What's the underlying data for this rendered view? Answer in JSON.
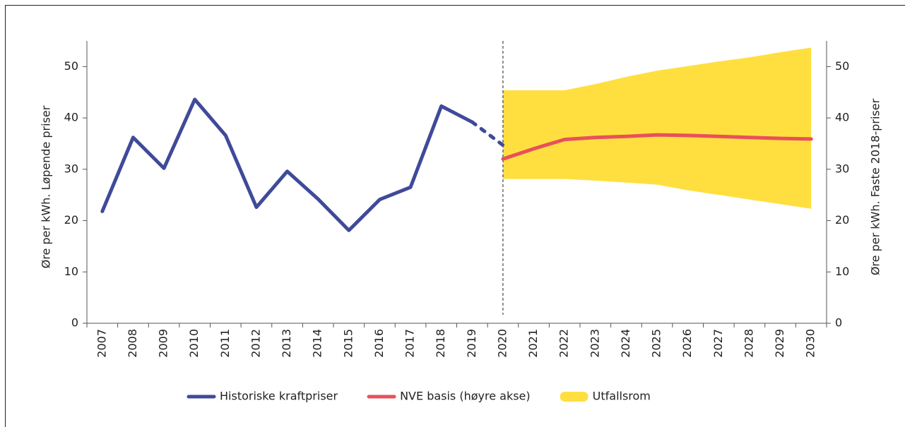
{
  "chart_data": {
    "type": "line",
    "y_label": "Øre per kWh. Løpende priser",
    "y2_label": "Øre per kWh. Faste 2018-priser",
    "categories": [
      "2007",
      "2008",
      "2009",
      "2010",
      "2011",
      "2012",
      "2013",
      "2014",
      "2015",
      "2016",
      "2017",
      "2018",
      "2019",
      "2020",
      "2021",
      "2022",
      "2023",
      "2024",
      "2025",
      "2026",
      "2027",
      "2028",
      "2029",
      "2030"
    ],
    "series": [
      {
        "name": "Historiske kraftpriser",
        "color": "#3f4a99",
        "dash_last_segment": true,
        "values": [
          21.8,
          36.2,
          30.2,
          43.6,
          36.6,
          22.6,
          29.6,
          24.2,
          18.1,
          24.1,
          26.5,
          42.3,
          39.2,
          34.7,
          null,
          null,
          null,
          null,
          null,
          null,
          null,
          null,
          null,
          null
        ]
      },
      {
        "name": "NVE basis (høyre akse)",
        "color": "#e8505b",
        "axis": "y2",
        "values": [
          null,
          null,
          null,
          null,
          null,
          null,
          null,
          null,
          null,
          null,
          null,
          null,
          null,
          32.0,
          34.0,
          35.8,
          36.2,
          36.4,
          36.7,
          36.6,
          36.4,
          36.2,
          36.0,
          35.9
        ]
      },
      {
        "name": "Utfallsrom",
        "color": "#ffdf3f",
        "type": "band",
        "axis": "y2",
        "upper": [
          null,
          null,
          null,
          null,
          null,
          null,
          null,
          null,
          null,
          null,
          null,
          null,
          null,
          45.4,
          45.4,
          45.4,
          46.6,
          48.0,
          49.2,
          50.1,
          51.0,
          51.8,
          52.8,
          53.7
        ],
        "lower": [
          null,
          null,
          null,
          null,
          null,
          null,
          null,
          null,
          null,
          null,
          null,
          null,
          null,
          28.1,
          28.1,
          28.1,
          27.8,
          27.4,
          27.0,
          25.9,
          25.0,
          24.1,
          23.2,
          22.3
        ]
      }
    ],
    "ylim": [
      0,
      55
    ],
    "yticks": [
      0,
      10,
      20,
      30,
      40,
      50
    ],
    "y2lim": [
      0,
      55
    ],
    "y2ticks": [
      0,
      10,
      20,
      30,
      40,
      50
    ],
    "vline_category": "2020",
    "legend": "bottom"
  }
}
